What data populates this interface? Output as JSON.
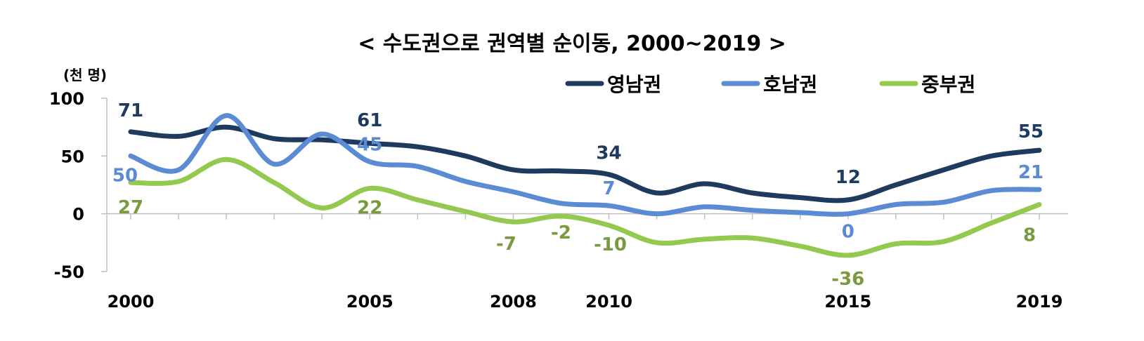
{
  "chart_data": {
    "type": "line",
    "title": "< 수도권으로 권역별 순이동, 2000~2019 >",
    "unit_label": "(천 명)",
    "x": [
      2000,
      2001,
      2002,
      2003,
      2004,
      2005,
      2006,
      2007,
      2008,
      2009,
      2010,
      2011,
      2012,
      2013,
      2014,
      2015,
      2016,
      2017,
      2018,
      2019
    ],
    "xticks": [
      "2000",
      "2005",
      "2008",
      "2010",
      "2015",
      "2019"
    ],
    "xtick_values": [
      2000,
      2005,
      2008,
      2010,
      2015,
      2019
    ],
    "ylim": [
      -50,
      100
    ],
    "yticks": [
      "100",
      "50",
      "0",
      "-50"
    ],
    "ytick_values": [
      100,
      50,
      0,
      -50
    ],
    "grid": false,
    "legend_position": "top-right",
    "series": [
      {
        "name": "영남권",
        "color": "#1f3a5f",
        "values": [
          71,
          67,
          75,
          65,
          64,
          61,
          58,
          50,
          38,
          37,
          34,
          18,
          26,
          18,
          14,
          12,
          25,
          38,
          50,
          55
        ],
        "labels": [
          {
            "x": 2000,
            "text": "71"
          },
          {
            "x": 2005,
            "text": "61"
          },
          {
            "x": 2010,
            "text": "34"
          },
          {
            "x": 2015,
            "text": "12"
          },
          {
            "x": 2019,
            "text": "55"
          }
        ]
      },
      {
        "name": "호남권",
        "color": "#5b8bd3",
        "values": [
          50,
          38,
          85,
          43,
          69,
          45,
          41,
          28,
          19,
          9,
          7,
          0,
          6,
          3,
          1,
          0,
          8,
          10,
          20,
          21
        ],
        "labels": [
          {
            "x": 2000,
            "text": "50"
          },
          {
            "x": 2005,
            "text": "45"
          },
          {
            "x": 2010,
            "text": "7"
          },
          {
            "x": 2015,
            "text": "0"
          },
          {
            "x": 2019,
            "text": "21"
          }
        ]
      },
      {
        "name": "중부권",
        "color": "#93c94f",
        "values": [
          27,
          28,
          47,
          27,
          5,
          22,
          12,
          2,
          -7,
          -2,
          -10,
          -25,
          -22,
          -21,
          -28,
          -36,
          -26,
          -24,
          -8,
          8
        ],
        "labels": [
          {
            "x": 2000,
            "text": "27"
          },
          {
            "x": 2005,
            "text": "22"
          },
          {
            "x": 2008,
            "text": "-7"
          },
          {
            "x": 2009,
            "text": "-2"
          },
          {
            "x": 2010,
            "text": "-10"
          },
          {
            "x": 2015,
            "text": "-36"
          },
          {
            "x": 2019,
            "text": "8"
          }
        ]
      }
    ]
  }
}
